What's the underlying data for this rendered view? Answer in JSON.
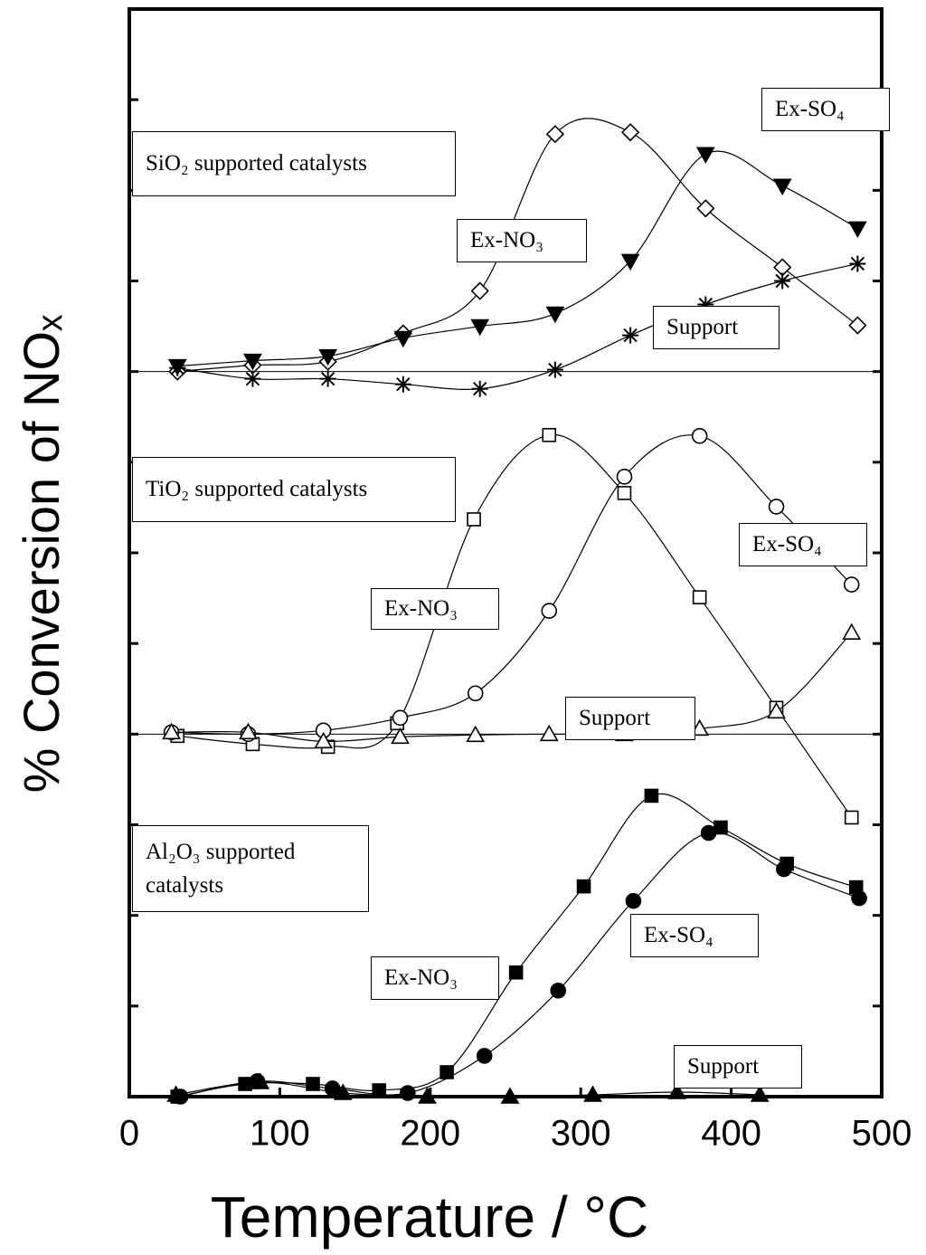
{
  "chart_data": {
    "type": "line",
    "xlabel": "Temperature / °C",
    "ylabel": "% Conversion of NOₓ",
    "xlim": [
      0,
      500
    ],
    "xticks": [
      0,
      100,
      200,
      300,
      400,
      500
    ],
    "ylim": [
      0,
      12
    ],
    "yticks": [
      0,
      1,
      2,
      3,
      4,
      5,
      6,
      7,
      8,
      9,
      10,
      11,
      12
    ],
    "baselines": [
      4,
      8
    ],
    "annotations": [
      "SiO₂ supported catalysts",
      "TiO₂ supported catalysts",
      "Al₂O₃ supported catalysts"
    ],
    "series": [
      {
        "name": "Ex-NO₃",
        "marker": "diamond",
        "filled": false,
        "x": [
          32,
          82,
          132,
          182,
          233,
          283,
          333,
          383,
          434,
          484
        ],
        "values": [
          8.0,
          8.07,
          8.11,
          8.42,
          8.89,
          10.62,
          10.64,
          9.8,
          9.15,
          8.51
        ]
      },
      {
        "name": "Ex-SO₄",
        "marker": "triangle-down",
        "filled": true,
        "x": [
          32,
          82,
          132,
          182,
          233,
          283,
          333,
          383,
          434,
          484
        ],
        "values": [
          8.06,
          8.12,
          8.17,
          8.37,
          8.5,
          8.64,
          9.22,
          10.4,
          10.05,
          9.58
        ]
      },
      {
        "name": "Support",
        "marker": "asterisk",
        "filled": false,
        "x": [
          32,
          82,
          132,
          182,
          233,
          283,
          333,
          383,
          434,
          484
        ],
        "values": [
          8.04,
          7.92,
          7.92,
          7.86,
          7.81,
          8.02,
          8.4,
          8.74,
          9.0,
          9.19
        ]
      },
      {
        "name": "Ex-NO₃",
        "marker": "square",
        "filled": false,
        "x": [
          32,
          82,
          132,
          178,
          229,
          279,
          329,
          379,
          430,
          480
        ],
        "values": [
          3.98,
          3.89,
          3.86,
          4.12,
          6.37,
          7.3,
          6.66,
          5.51,
          4.29,
          3.08
        ]
      },
      {
        "name": "Ex-SO₄",
        "marker": "circle",
        "filled": false,
        "x": [
          28,
          79,
          129,
          180,
          230,
          279,
          329,
          379,
          430,
          480
        ],
        "values": [
          4.02,
          4.0,
          4.04,
          4.18,
          4.45,
          5.36,
          6.84,
          7.29,
          6.51,
          5.65
        ]
      },
      {
        "name": "Support",
        "marker": "triangle",
        "filled": false,
        "x": [
          28,
          79,
          129,
          180,
          230,
          279,
          329,
          379,
          430,
          480
        ],
        "values": [
          4.02,
          4.02,
          3.92,
          3.97,
          3.99,
          4.0,
          4.0,
          4.06,
          4.25,
          5.12
        ]
      },
      {
        "name": "Ex-NO₃",
        "marker": "square",
        "filled": true,
        "x": [
          32,
          77,
          122,
          166,
          211,
          257,
          302,
          347,
          393,
          437,
          483
        ],
        "values": [
          0,
          0.14,
          0.14,
          0.07,
          0.27,
          1.37,
          2.32,
          3.32,
          2.97,
          2.57,
          2.31
        ]
      },
      {
        "name": "Ex-SO₄",
        "marker": "circle",
        "filled": true,
        "x": [
          34,
          85,
          135,
          185,
          236,
          285,
          335,
          385,
          435,
          485
        ],
        "values": [
          0,
          0.17,
          0.09,
          0.04,
          0.45,
          1.17,
          2.16,
          2.91,
          2.51,
          2.19
        ]
      },
      {
        "name": "Support",
        "marker": "triangle",
        "filled": true,
        "x": [
          31,
          87,
          142,
          198,
          253,
          308,
          364,
          419
        ],
        "values": [
          0.02,
          0.16,
          0.04,
          0,
          0,
          0.02,
          0.05,
          0.02
        ]
      }
    ]
  }
}
